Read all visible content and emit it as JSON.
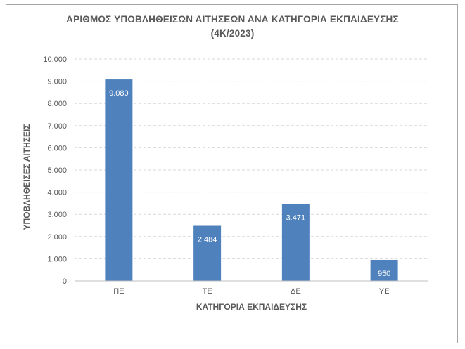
{
  "chart_data": {
    "type": "bar",
    "title": "ΑΡΙΘΜΟΣ ΥΠΟΒΛΗΘΕΙΣΩΝ ΑΙΤΗΣΕΩΝ ΑΝΑ ΚΑΤΗΓΟΡΙΑ ΕΚΠΑΙΔΕΥΣΗΣ",
    "subtitle": "(4Κ/2023)",
    "xlabel": "ΚΑΤΗΓΟΡΙΑ ΕΚΠΑΙΔΕΥΣΗΣ",
    "ylabel": "ΥΠΟΒΛΗΘΕΙΣΕΣ ΑΙΤΗΣΕΙΣ",
    "categories": [
      "ΠΕ",
      "ΤΕ",
      "ΔΕ",
      "ΥΕ"
    ],
    "values": [
      9080,
      2484,
      3471,
      950
    ],
    "data_labels": [
      "9.080",
      "2.484",
      "3.471",
      "950"
    ],
    "ylim": [
      0,
      10000
    ],
    "yticks": [
      0,
      1000,
      2000,
      3000,
      4000,
      5000,
      6000,
      7000,
      8000,
      9000,
      10000
    ],
    "ytick_labels": [
      "0",
      "1.000",
      "2.000",
      "3.000",
      "4.000",
      "5.000",
      "6.000",
      "7.000",
      "8.000",
      "9.000",
      "10.000"
    ],
    "grid": true,
    "bar_color": "#4f81bd",
    "grid_color": "#d9d9d9"
  }
}
